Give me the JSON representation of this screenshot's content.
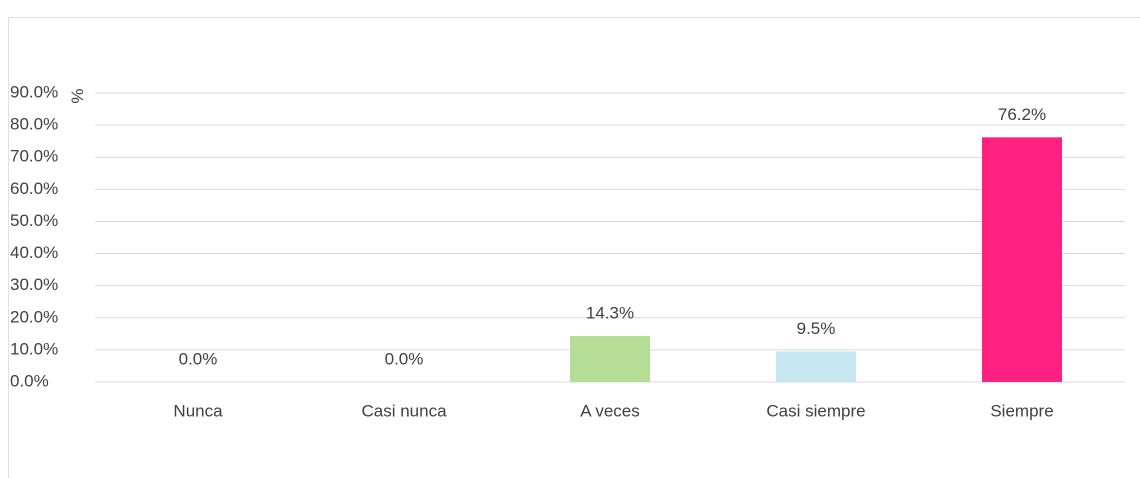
{
  "chart_data": {
    "type": "bar",
    "y_label": "%",
    "categories": [
      "Nunca",
      "Casi nunca",
      "A veces",
      "Casi siempre",
      "Siempre"
    ],
    "values": [
      0,
      0,
      14.3,
      9.5,
      76.2
    ],
    "value_labels": [
      "0.0%",
      "0.0%",
      "14.3%",
      "9.5%",
      "76.2%"
    ],
    "colors": [
      "#5b9bd5",
      "#ed7d31",
      "#b6dd96",
      "#c7e8f2",
      "#fe2182"
    ],
    "ylim": [
      0,
      90
    ],
    "yticks": [
      {
        "value": 0,
        "label": "0.0%"
      },
      {
        "value": 10,
        "label": "10.0%"
      },
      {
        "value": 20,
        "label": "20.0%"
      },
      {
        "value": 30,
        "label": "30.0%"
      },
      {
        "value": 40,
        "label": "40.0%"
      },
      {
        "value": 50,
        "label": "50.0%"
      },
      {
        "value": 60,
        "label": "60.0%"
      },
      {
        "value": 70,
        "label": "70.0%"
      },
      {
        "value": 80,
        "label": "80.0%"
      },
      {
        "value": 90,
        "label": "90.0%"
      }
    ],
    "grid": true
  }
}
